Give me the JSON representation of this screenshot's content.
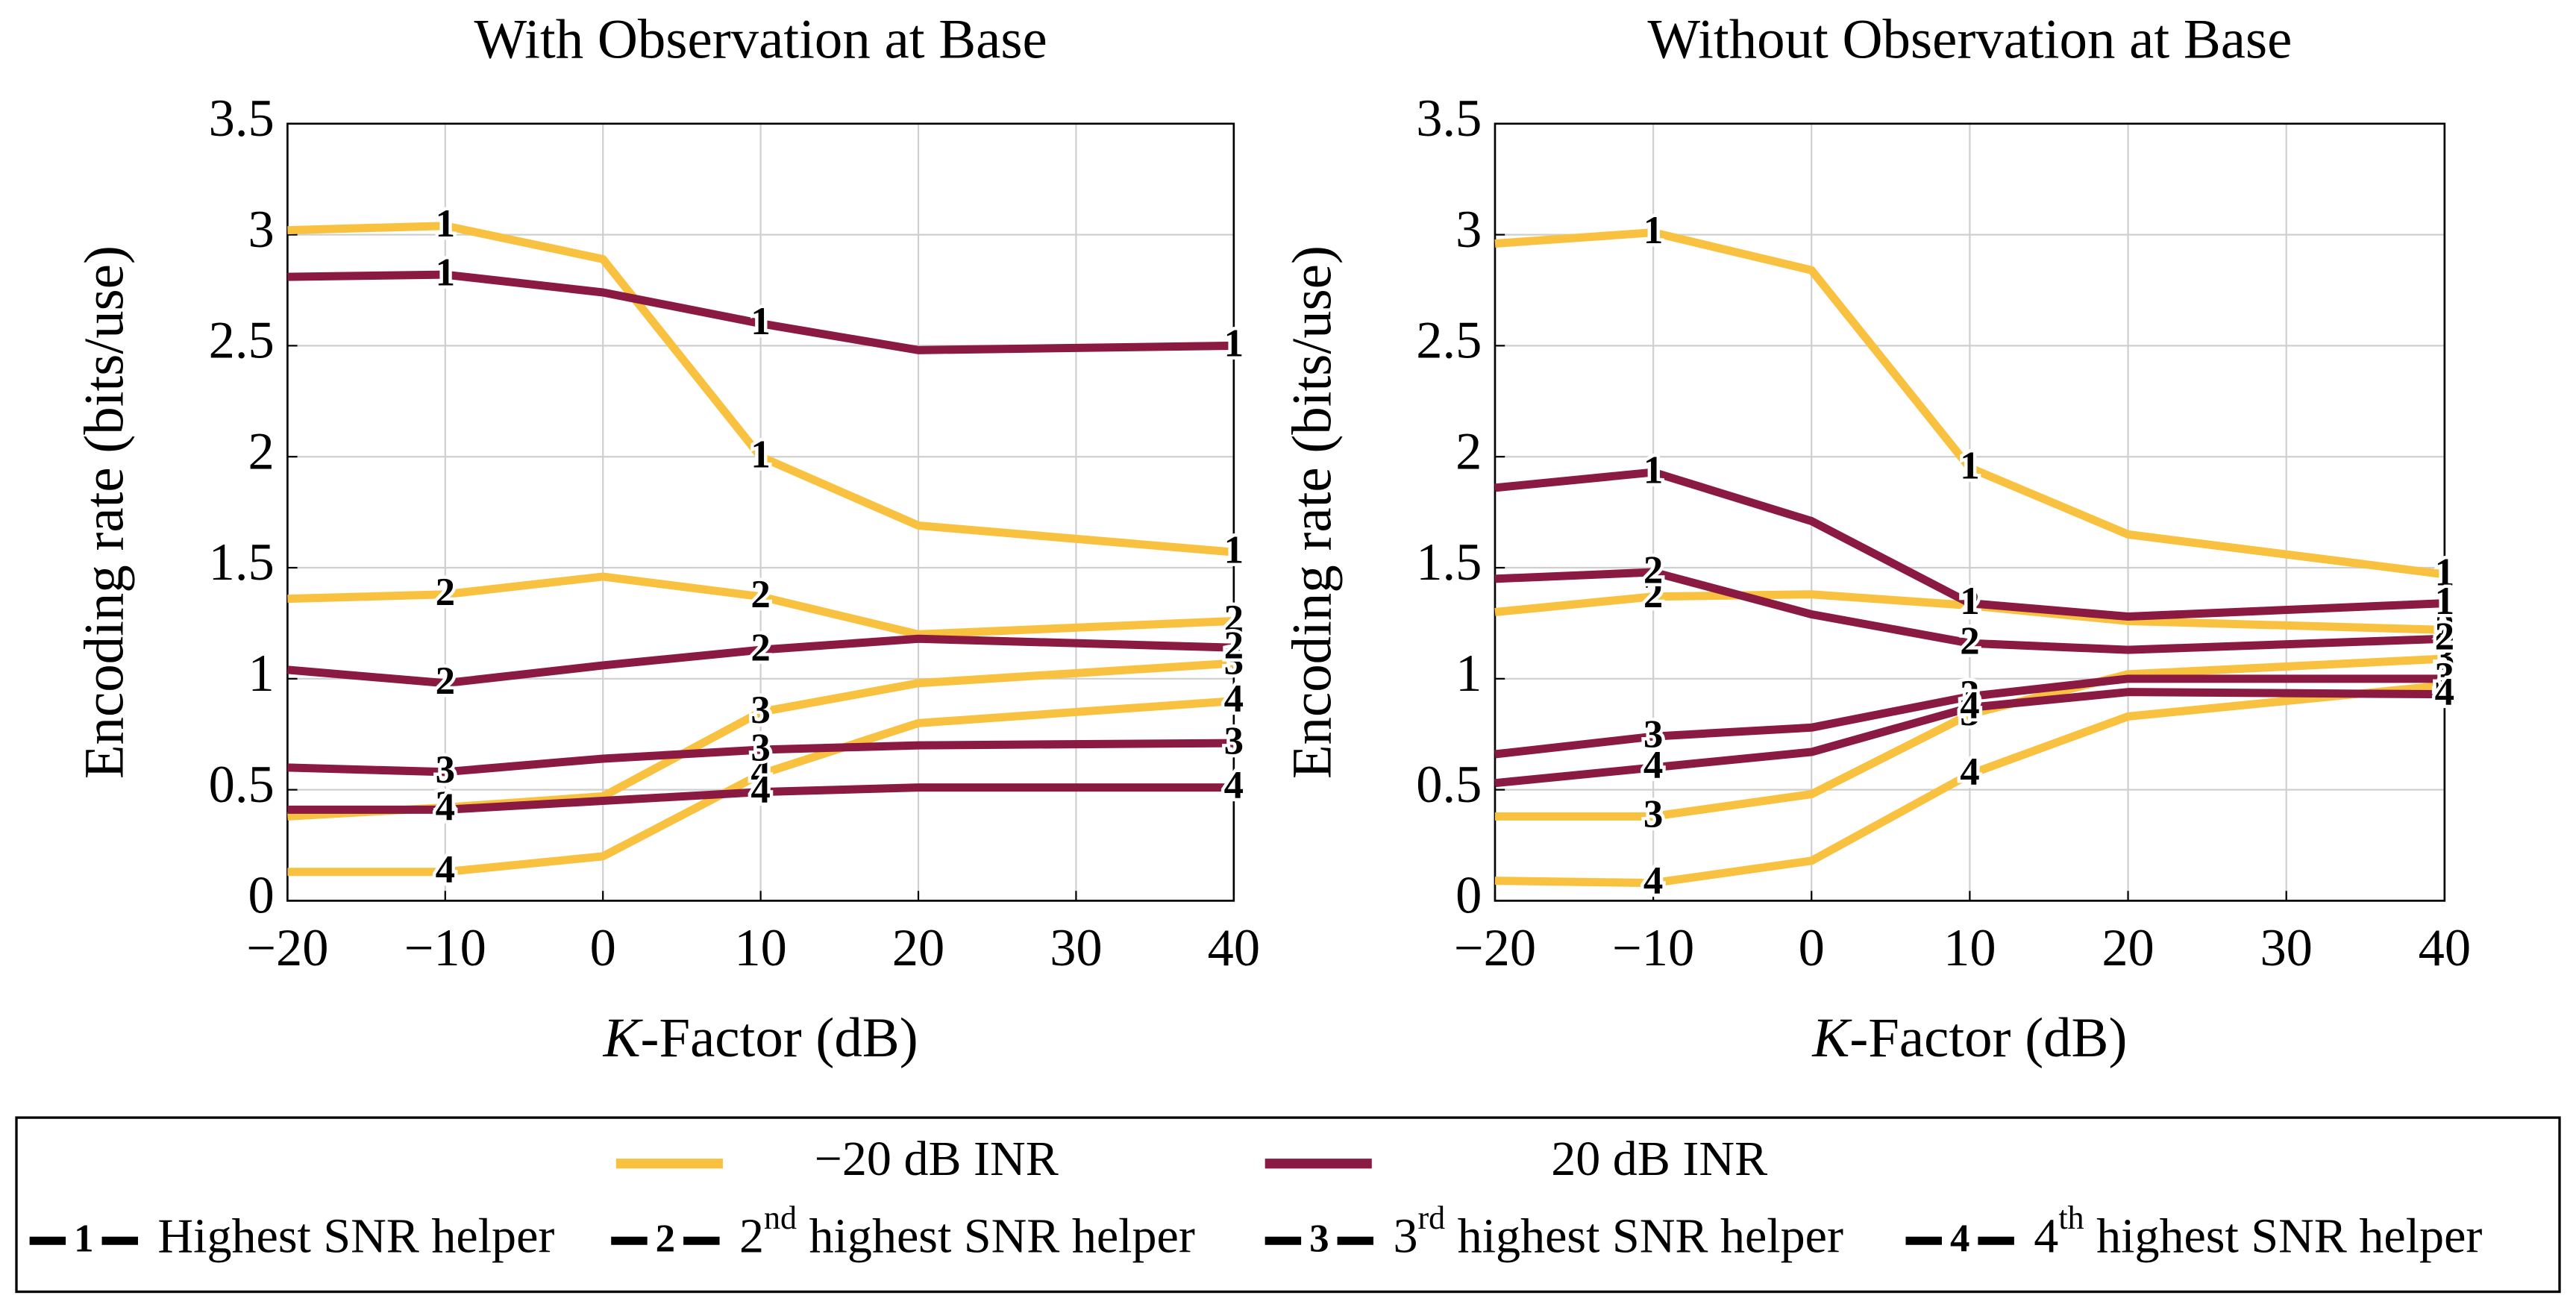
{
  "chart_data": [
    {
      "type": "line",
      "title": "With Observation at Base",
      "y_label": "Encoding rate (bits/use)",
      "x_label": {
        "italic": "K",
        "rest": "-Factor (dB)"
      },
      "x": [
        -20,
        -10,
        0,
        10,
        20,
        40
      ],
      "xlim": [
        -20,
        40
      ],
      "xticks": [
        {
          "value": -20,
          "label": "−20"
        },
        {
          "value": -10,
          "label": "−10"
        },
        0,
        10,
        20,
        30,
        40
      ],
      "ylim": [
        0,
        3.5
      ],
      "yticks": [
        0,
        0.5,
        1,
        1.5,
        2,
        2.5,
        3,
        3.5
      ],
      "grid": true,
      "series": [
        {
          "color": "#f8c240",
          "helper": 0,
          "values": [
            3.02,
            3.04,
            2.89,
            2.0,
            1.69,
            1.57
          ]
        },
        {
          "color": "#f8c240",
          "helper": 1,
          "values": [
            1.36,
            1.38,
            1.46,
            1.37,
            1.2,
            1.26
          ]
        },
        {
          "color": "#f8c240",
          "helper": 2,
          "values": [
            0.38,
            0.42,
            0.47,
            0.85,
            0.98,
            1.07
          ]
        },
        {
          "color": "#f8c240",
          "helper": 3,
          "values": [
            0.13,
            0.13,
            0.2,
            0.57,
            0.8,
            0.9
          ]
        },
        {
          "color": "#8b1a42",
          "helper": 0,
          "values": [
            2.81,
            2.82,
            2.74,
            2.6,
            2.48,
            2.5
          ]
        },
        {
          "color": "#8b1a42",
          "helper": 1,
          "values": [
            1.04,
            0.98,
            1.06,
            1.13,
            1.18,
            1.14
          ]
        },
        {
          "color": "#8b1a42",
          "helper": 2,
          "values": [
            0.6,
            0.58,
            0.64,
            0.68,
            0.7,
            0.71
          ]
        },
        {
          "color": "#8b1a42",
          "helper": 3,
          "values": [
            0.41,
            0.41,
            0.45,
            0.49,
            0.51,
            0.51
          ]
        }
      ]
    },
    {
      "type": "line",
      "title": "Without Observation at Base",
      "y_label": "Encoding rate (bits/use)",
      "x_label": {
        "italic": "K",
        "rest": "-Factor (dB)"
      },
      "x": [
        -20,
        -10,
        0,
        10,
        20,
        40
      ],
      "xlim": [
        -20,
        40
      ],
      "xticks": [
        {
          "value": -20,
          "label": "−20"
        },
        {
          "value": -10,
          "label": "−10"
        },
        0,
        10,
        20,
        30,
        40
      ],
      "ylim": [
        0,
        3.5
      ],
      "yticks": [
        0,
        0.5,
        1,
        1.5,
        2,
        2.5,
        3,
        3.5
      ],
      "grid": true,
      "series": [
        {
          "color": "#f8c240",
          "helper": 0,
          "values": [
            2.96,
            3.01,
            2.84,
            1.95,
            1.65,
            1.47
          ]
        },
        {
          "color": "#f8c240",
          "helper": 1,
          "values": [
            1.3,
            1.37,
            1.38,
            1.33,
            1.26,
            1.22
          ]
        },
        {
          "color": "#f8c240",
          "helper": 2,
          "values": [
            0.38,
            0.38,
            0.48,
            0.84,
            1.02,
            1.09
          ]
        },
        {
          "color": "#f8c240",
          "helper": 3,
          "values": [
            0.09,
            0.08,
            0.18,
            0.57,
            0.83,
            0.97
          ]
        },
        {
          "color": "#8b1a42",
          "helper": 0,
          "values": [
            1.86,
            1.93,
            1.71,
            1.34,
            1.28,
            1.34
          ]
        },
        {
          "color": "#8b1a42",
          "helper": 1,
          "values": [
            1.45,
            1.48,
            1.29,
            1.16,
            1.13,
            1.18
          ]
        },
        {
          "color": "#8b1a42",
          "helper": 2,
          "values": [
            0.66,
            0.74,
            0.78,
            0.92,
            1.0,
            1.0
          ]
        },
        {
          "color": "#8b1a42",
          "helper": 3,
          "values": [
            0.53,
            0.6,
            0.67,
            0.87,
            0.94,
            0.93
          ]
        }
      ]
    }
  ],
  "legend": {
    "colors": [
      {
        "label": "−20 dB INR",
        "color": "#f8c240"
      },
      {
        "label": "20 dB INR",
        "color": "#8b1a42"
      }
    ],
    "markers": [
      {
        "symbol": "1",
        "label": "Highest SNR helper"
      },
      {
        "symbol": "2",
        "ordinal": "2",
        "suffix": "nd",
        "label": " highest SNR helper"
      },
      {
        "symbol": "3",
        "ordinal": "3",
        "suffix": "rd",
        "label": " highest SNR helper"
      },
      {
        "symbol": "4",
        "ordinal": "4",
        "suffix": "th",
        "label": " highest SNR helper"
      }
    ]
  }
}
